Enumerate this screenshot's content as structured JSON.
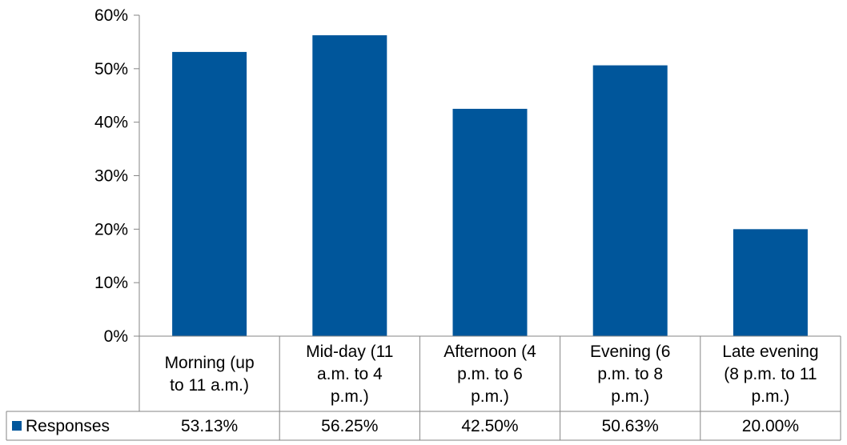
{
  "colors": {
    "bar": "#00569B",
    "axis": "#868686",
    "grid": "#868686",
    "text": "#000000"
  },
  "chart_data": {
    "type": "bar",
    "title": "",
    "xlabel": "",
    "ylabel": "",
    "ylim": [
      0,
      60
    ],
    "yticks": [
      "0%",
      "10%",
      "20%",
      "30%",
      "40%",
      "50%",
      "60%"
    ],
    "categories": [
      [
        "Morning (up",
        "to 11 a.m.)"
      ],
      [
        "Mid-day (11",
        "a.m. to 4",
        "p.m.)"
      ],
      [
        "Afternoon (4",
        "p.m. to 6",
        "p.m.)"
      ],
      [
        "Evening (6",
        "p.m. to 8",
        "p.m.)"
      ],
      [
        "Late evening",
        "(8 p.m. to 11",
        "p.m.)"
      ]
    ],
    "series": [
      {
        "name": "Responses",
        "values": [
          53.13,
          56.25,
          42.5,
          50.63,
          20.0
        ],
        "labels": [
          "53.13%",
          "56.25%",
          "42.50%",
          "50.63%",
          "20.00%"
        ]
      }
    ],
    "grid": false,
    "legend": "data-table-left",
    "data_table": true
  }
}
